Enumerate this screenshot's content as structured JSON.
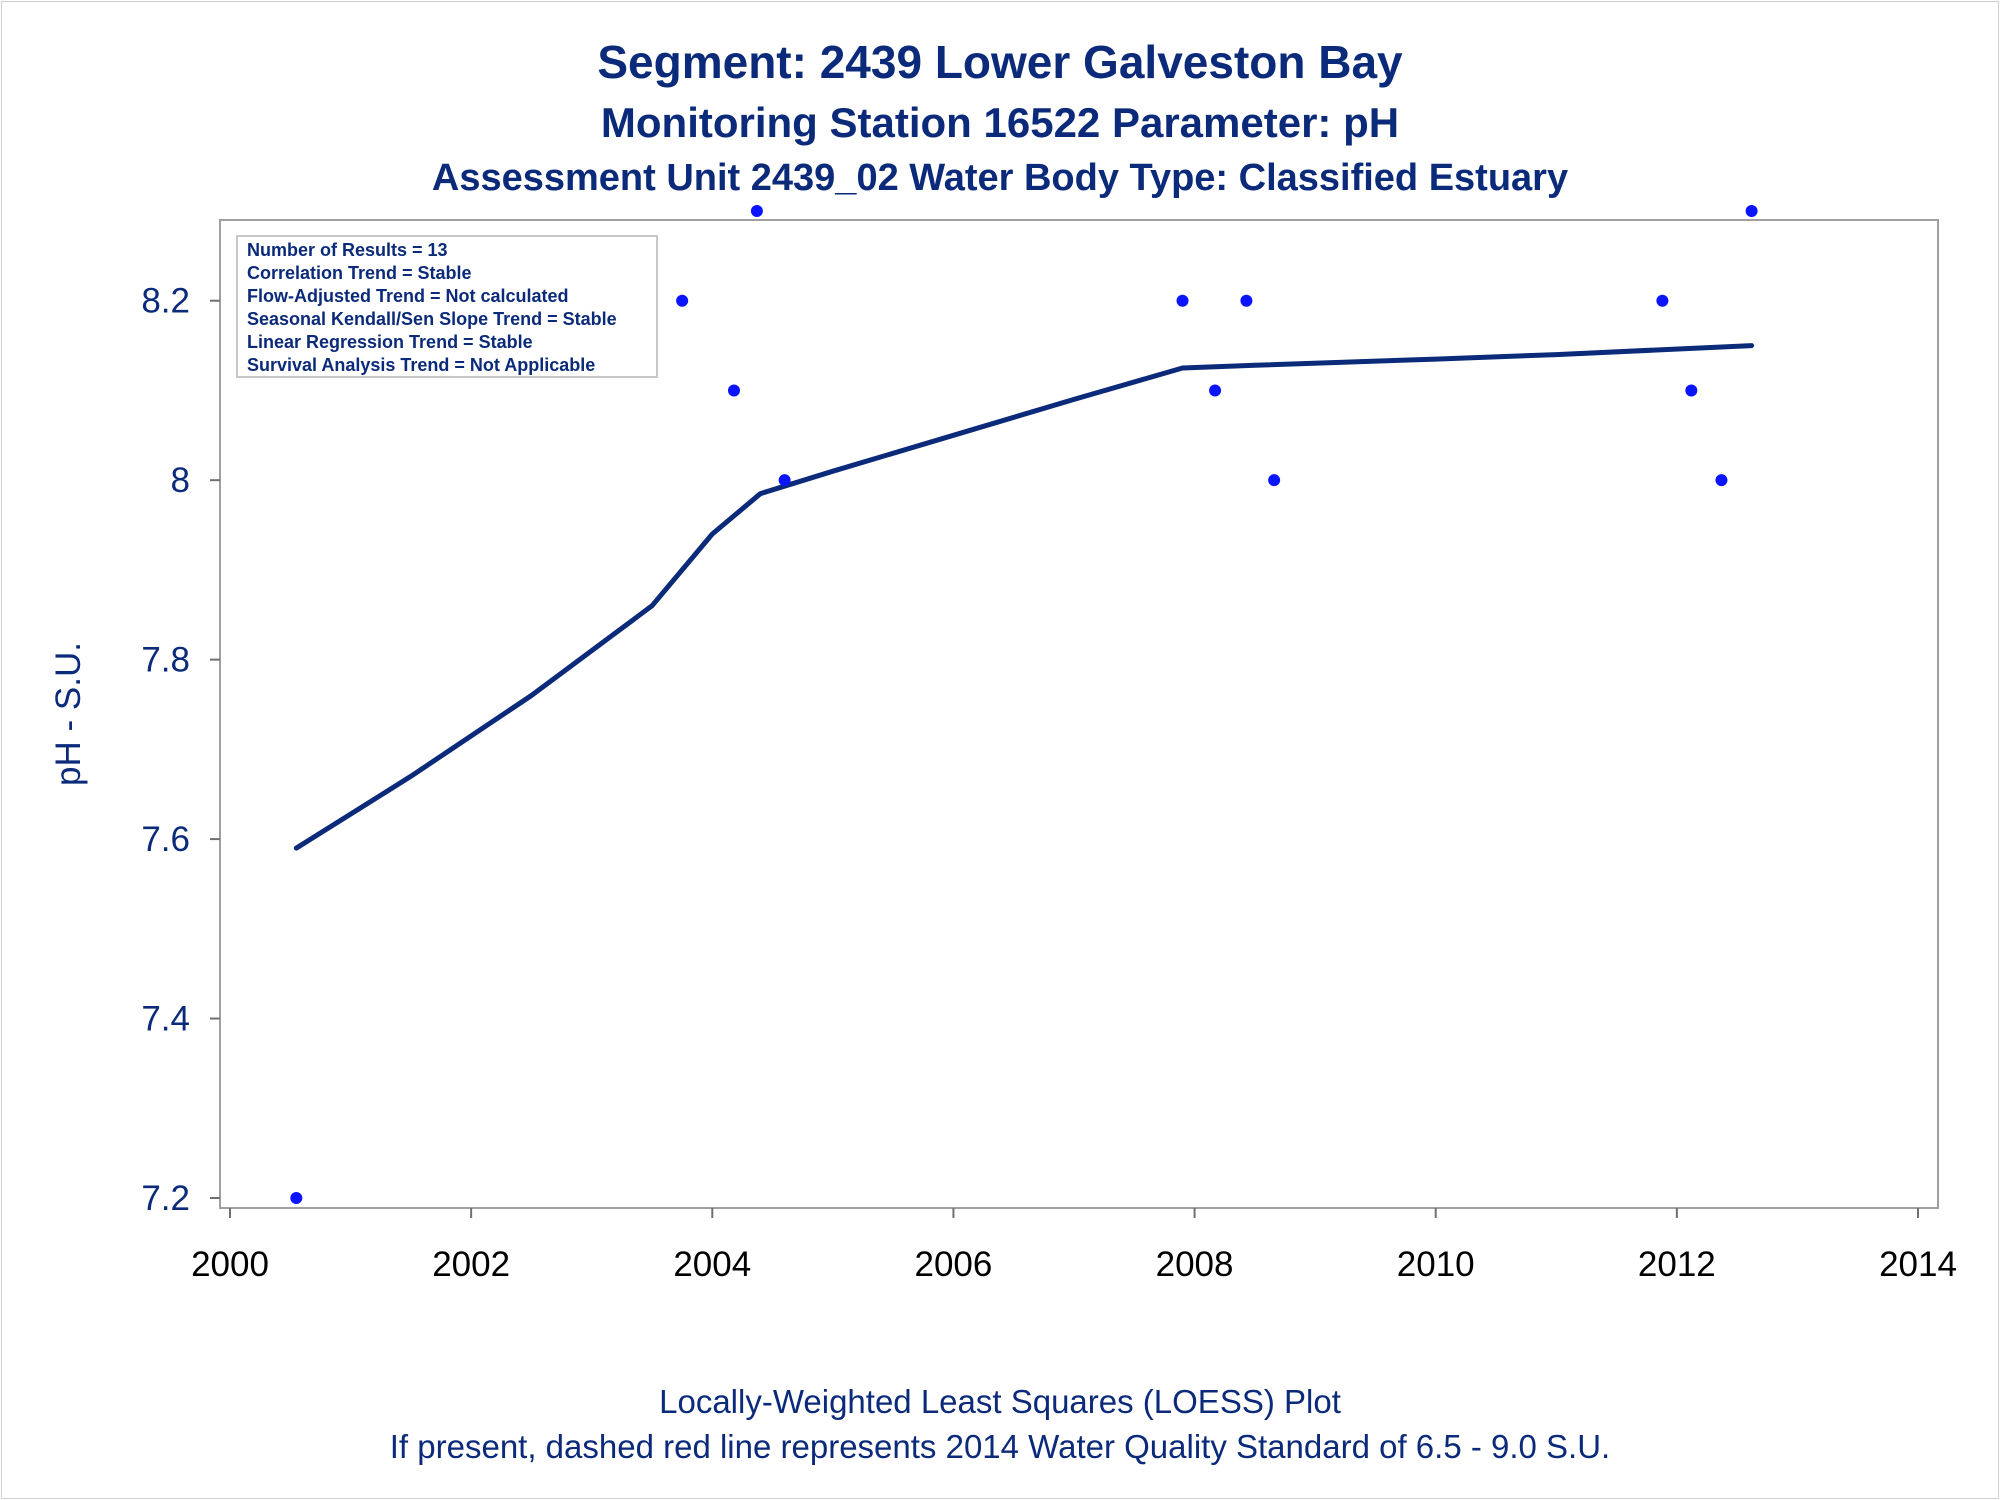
{
  "titles": [
    "Segment: 2439  Lower Galveston Bay",
    "Monitoring Station 16522 Parameter: pH",
    "Assessment Unit 2439_02   Water Body Type: Classified Estuary"
  ],
  "footnotes": [
    "Locally-Weighted Least Squares (LOESS) Plot",
    "If present, dashed red line represents 2014 Water Quality Standard of 6.5 - 9.0 S.U."
  ],
  "legend_lines": [
    "Number of Results = 13",
    "Correlation Trend = Stable",
    "Flow-Adjusted Trend = Not calculated",
    "Seasonal Kendall/Sen Slope Trend = Stable",
    "Linear Regression Trend = Stable",
    "Survival Analysis Trend = Not Applicable"
  ],
  "colors": {
    "points": "#0a14ff",
    "loess_line": "#0b2a7a",
    "text": "#0b2a7a",
    "frame": "#a0a0a0"
  },
  "chart_data": {
    "type": "scatter",
    "xlabel": "",
    "ylabel": "pH - S.U.",
    "xlim": [
      2000,
      2014
    ],
    "ylim": [
      7.2,
      8.3
    ],
    "x_ticks": [
      2000,
      2002,
      2004,
      2006,
      2008,
      2010,
      2012,
      2014
    ],
    "y_ticks": [
      7.2,
      7.4,
      7.6,
      7.8,
      8,
      8.2
    ],
    "x_tick_labels": [
      "2000",
      "2002",
      "2004",
      "2006",
      "2008",
      "2010",
      "2012",
      "2014"
    ],
    "y_tick_labels": [
      "7.2",
      "7.4",
      "7.6",
      "7.8",
      "8",
      "8.2"
    ],
    "grid": false,
    "legend": "top-left",
    "points": [
      {
        "x": 2000.55,
        "y": 7.2
      },
      {
        "x": 2003.75,
        "y": 8.2
      },
      {
        "x": 2004.18,
        "y": 8.1
      },
      {
        "x": 2004.37,
        "y": 8.3
      },
      {
        "x": 2004.6,
        "y": 8.0
      },
      {
        "x": 2007.9,
        "y": 8.2
      },
      {
        "x": 2008.17,
        "y": 8.1
      },
      {
        "x": 2008.43,
        "y": 8.2
      },
      {
        "x": 2008.66,
        "y": 8.0
      },
      {
        "x": 2011.88,
        "y": 8.2
      },
      {
        "x": 2012.12,
        "y": 8.1
      },
      {
        "x": 2012.37,
        "y": 8.0
      },
      {
        "x": 2012.62,
        "y": 8.3
      }
    ],
    "loess_line": [
      {
        "x": 2000.55,
        "y": 7.59
      },
      {
        "x": 2001.5,
        "y": 7.67
      },
      {
        "x": 2002.5,
        "y": 7.76
      },
      {
        "x": 2003.5,
        "y": 7.86
      },
      {
        "x": 2004.0,
        "y": 7.94
      },
      {
        "x": 2004.4,
        "y": 7.985
      },
      {
        "x": 2005.0,
        "y": 8.01
      },
      {
        "x": 2006.0,
        "y": 8.05
      },
      {
        "x": 2007.0,
        "y": 8.09
      },
      {
        "x": 2007.9,
        "y": 8.125
      },
      {
        "x": 2008.5,
        "y": 8.128
      },
      {
        "x": 2010.0,
        "y": 8.135
      },
      {
        "x": 2011.0,
        "y": 8.14
      },
      {
        "x": 2012.62,
        "y": 8.15
      }
    ]
  }
}
